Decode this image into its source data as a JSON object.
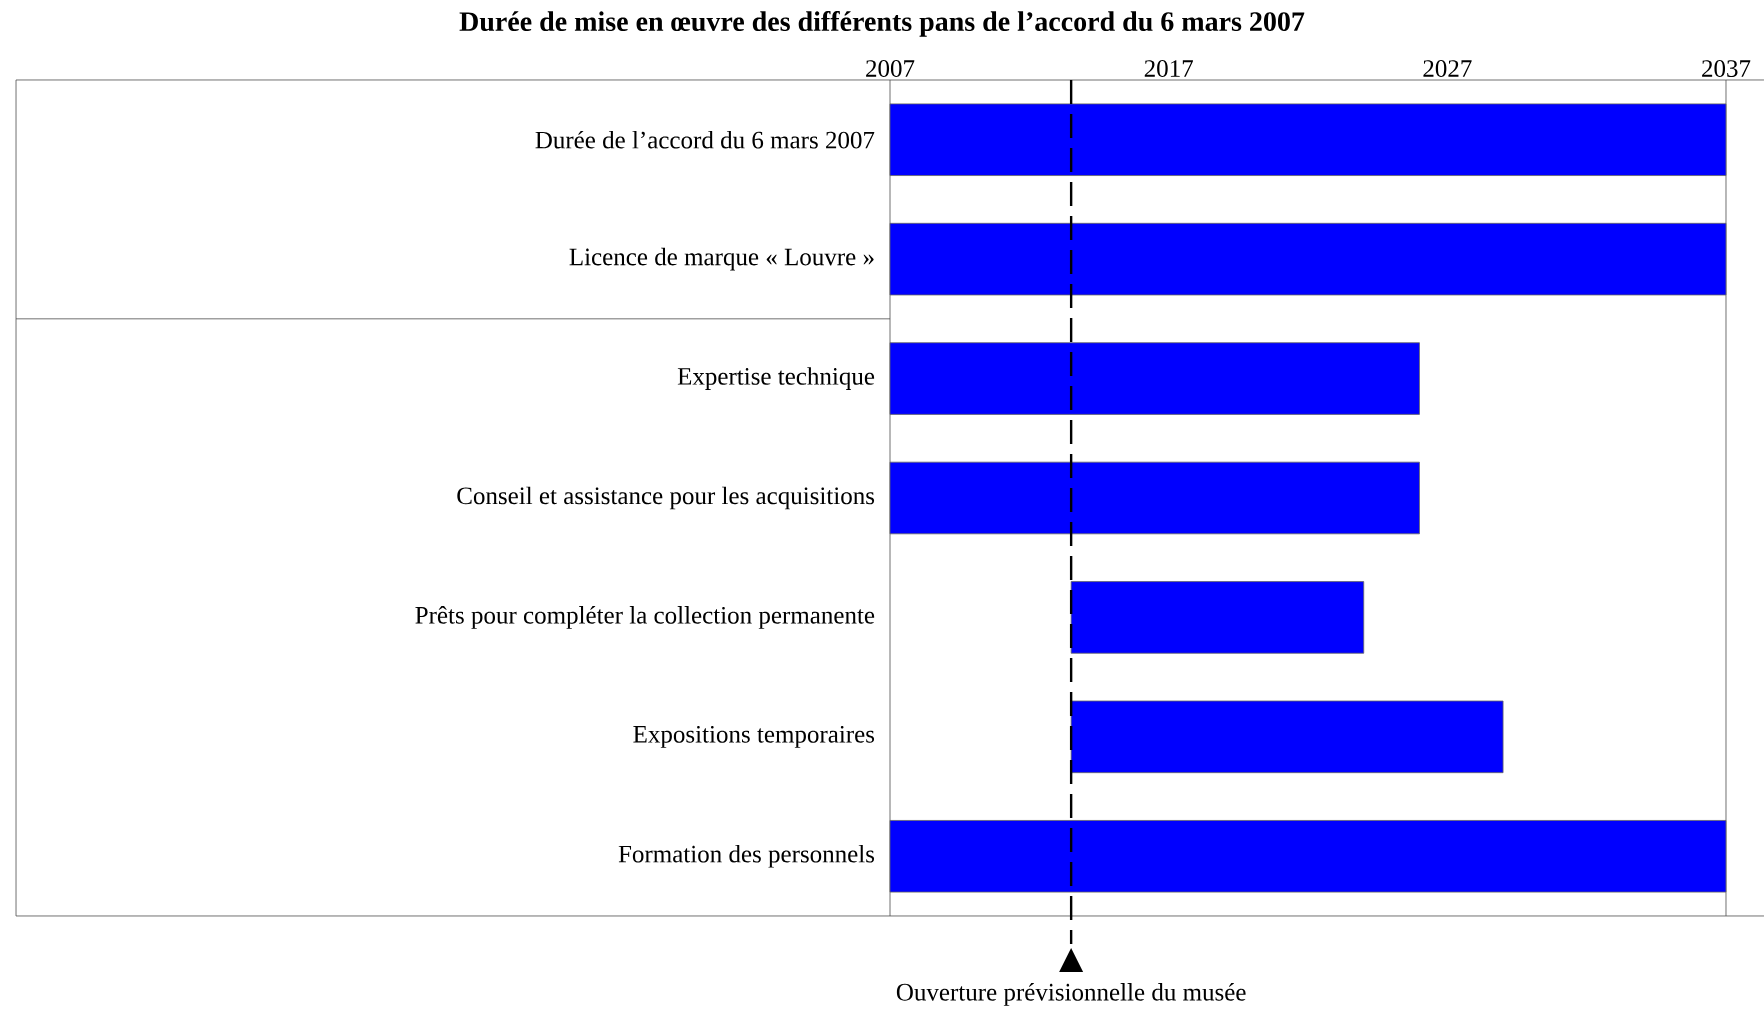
{
  "chart_data": {
    "type": "bar",
    "orientation": "horizontal",
    "title": "Durée de mise en œuvre des différents pans de l’accord du 6 mars 2007",
    "categories": [
      "Durée de l’accord du 6 mars 2007",
      "Licence de marque « Louvre »",
      "Expertise technique",
      "Conseil et assistance pour les acquisitions",
      "Prêts pour compléter la collection permanente",
      "Expositions temporaires",
      "Formation des personnels"
    ],
    "base": [
      2007,
      2007,
      2007,
      2007,
      2013.5,
      2013.5,
      2007
    ],
    "values": [
      30,
      30,
      19,
      19,
      10.5,
      15.5,
      30
    ],
    "color": "#0000ff",
    "xlim": [
      2007,
      2037
    ],
    "xticks": [
      2007,
      2017,
      2027,
      2037
    ],
    "ref_lines": [
      {
        "axis": "x",
        "value": 2013.5,
        "label": "Ouverture prévisionnelle du musée",
        "line_style": "dashed"
      }
    ],
    "grid": false
  }
}
